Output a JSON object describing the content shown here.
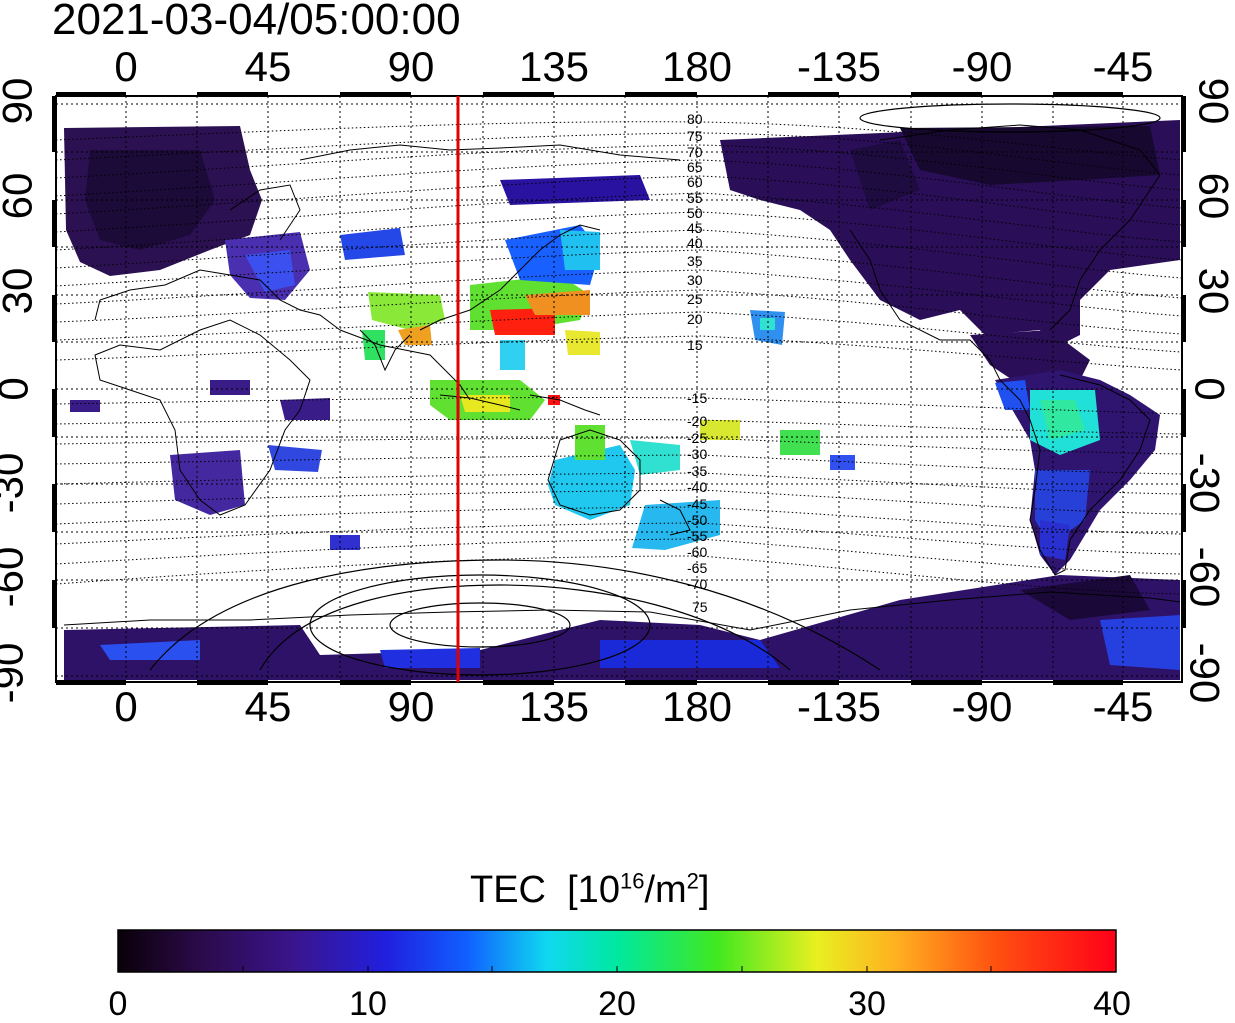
{
  "timestamp": "2021-03-04/05:00:00",
  "top_lon_labels": [
    "0",
    "45",
    "90",
    "135",
    "180",
    "-135",
    "-90",
    "-45"
  ],
  "bottom_lon_labels": [
    "0",
    "45",
    "90",
    "135",
    "180",
    "-135",
    "-90",
    "-45"
  ],
  "left_lat_labels": [
    "90",
    "60",
    "30",
    "0",
    "-30",
    "-60",
    "-90"
  ],
  "right_lat_labels": [
    "90",
    "60",
    "30",
    "0",
    "-30",
    "-60",
    "-90"
  ],
  "contour_labels_north": [
    "80",
    "75",
    "70",
    "65",
    "60",
    "55",
    "50",
    "45",
    "40",
    "35",
    "30",
    "25",
    "20",
    "15"
  ],
  "contour_labels_south": [
    "-15",
    "-20",
    "-25",
    "-30",
    "-35",
    "-40",
    "-45",
    "-50",
    "-55",
    "-60",
    "-65",
    "-70",
    "75"
  ],
  "colorbar": {
    "title": "TEC",
    "unit_prefix": "[10",
    "unit_exp1": "16",
    "unit_mid": "/m",
    "unit_exp2": "2",
    "unit_suffix": "]",
    "tick_labels": [
      "0",
      "10",
      "20",
      "30",
      "40"
    ],
    "min": 0,
    "max": 40
  },
  "colors": {
    "terminator_line": "#e00000",
    "background": "#ffffff"
  }
}
